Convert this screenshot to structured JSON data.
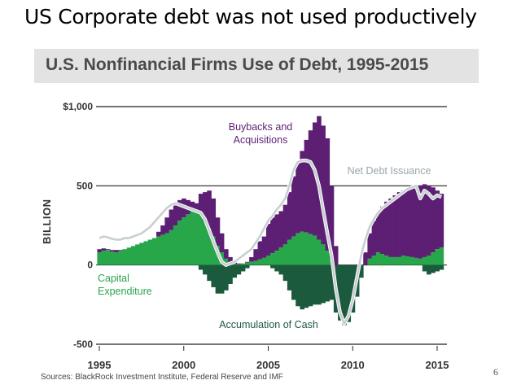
{
  "slide": {
    "title": "US Corporate debt was not used productively",
    "page_number": "6"
  },
  "chart_title": "U.S. Nonfinancial Firms Use of Debt, 1995-2015",
  "source": "Sources: BlackRock Investment Institute, Federal Reserve and IMF",
  "colors": {
    "buybacks": "#5d1f73",
    "capex": "#27a74a",
    "cash": "#1c5a3e",
    "net_debt": "#c8cfd2",
    "axis": "#222222",
    "banner": "#e3e3e3"
  },
  "chart_data": {
    "type": "area",
    "title": "U.S. Nonfinancial Firms Use of Debt, 1995-2015",
    "ylabel": "BILLION",
    "xlabel": "",
    "ylim": [
      -500,
      1000
    ],
    "xlim": [
      1995,
      2015.5
    ],
    "yticks": [
      {
        "value": 1000,
        "label": "$1,000"
      },
      {
        "value": 500,
        "label": "500"
      },
      {
        "value": 0,
        "label": "0"
      },
      {
        "value": -500,
        "label": "-500"
      }
    ],
    "xticks": [
      {
        "value": 1995,
        "label": "1995"
      },
      {
        "value": 2000,
        "label": "2000"
      },
      {
        "value": 2005,
        "label": "2005"
      },
      {
        "value": 2010,
        "label": "2010"
      },
      {
        "value": 2015,
        "label": "2015"
      }
    ],
    "x": [
      1995.0,
      1995.25,
      1995.5,
      1995.75,
      1996.0,
      1996.25,
      1996.5,
      1996.75,
      1997.0,
      1997.25,
      1997.5,
      1997.75,
      1998.0,
      1998.25,
      1998.5,
      1998.75,
      1999.0,
      1999.25,
      1999.5,
      1999.75,
      2000.0,
      2000.25,
      2000.5,
      2000.75,
      2001.0,
      2001.25,
      2001.5,
      2001.75,
      2002.0,
      2002.25,
      2002.5,
      2002.75,
      2003.0,
      2003.25,
      2003.5,
      2003.75,
      2004.0,
      2004.25,
      2004.5,
      2004.75,
      2005.0,
      2005.25,
      2005.5,
      2005.75,
      2006.0,
      2006.25,
      2006.5,
      2006.75,
      2007.0,
      2007.25,
      2007.5,
      2007.75,
      2008.0,
      2008.25,
      2008.5,
      2008.75,
      2009.0,
      2009.25,
      2009.5,
      2009.75,
      2010.0,
      2010.25,
      2010.5,
      2010.75,
      2011.0,
      2011.25,
      2011.5,
      2011.75,
      2012.0,
      2012.25,
      2012.5,
      2012.75,
      2013.0,
      2013.25,
      2013.5,
      2013.75,
      2014.0,
      2014.25,
      2014.5,
      2014.75,
      2015.0,
      2015.25
    ],
    "series": [
      {
        "name": "Capital Expenditure",
        "values": [
          80,
          90,
          95,
          85,
          80,
          90,
          100,
          110,
          120,
          130,
          140,
          150,
          160,
          170,
          180,
          190,
          200,
          220,
          250,
          280,
          300,
          320,
          340,
          350,
          330,
          280,
          230,
          180,
          120,
          80,
          40,
          15,
          5,
          5,
          10,
          15,
          20,
          25,
          35,
          45,
          60,
          75,
          90,
          110,
          130,
          160,
          180,
          200,
          210,
          205,
          195,
          185,
          160,
          130,
          90,
          40,
          0,
          0,
          0,
          0,
          0,
          0,
          0,
          0,
          40,
          60,
          80,
          70,
          60,
          50,
          50,
          50,
          60,
          55,
          50,
          45,
          40,
          50,
          60,
          80,
          100,
          110
        ]
      },
      {
        "name": "Buybacks and Acquisitions",
        "values": [
          100,
          105,
          100,
          95,
          95,
          95,
          90,
          85,
          90,
          100,
          110,
          120,
          130,
          170,
          210,
          250,
          300,
          350,
          390,
          410,
          420,
          410,
          400,
          390,
          450,
          460,
          470,
          420,
          300,
          200,
          100,
          50,
          20,
          10,
          10,
          20,
          50,
          100,
          150,
          180,
          260,
          300,
          320,
          340,
          380,
          460,
          560,
          650,
          720,
          790,
          850,
          900,
          940,
          880,
          800,
          500,
          120,
          0,
          0,
          0,
          0,
          0,
          0,
          80,
          200,
          280,
          330,
          370,
          400,
          420,
          440,
          460,
          470,
          470,
          490,
          500,
          500,
          510,
          500,
          490,
          470,
          450
        ]
      },
      {
        "name": "Accumulation of Cash",
        "values": [
          0,
          0,
          0,
          0,
          0,
          0,
          0,
          0,
          0,
          0,
          0,
          0,
          0,
          0,
          0,
          0,
          0,
          0,
          0,
          0,
          0,
          0,
          0,
          0,
          -30,
          -60,
          -100,
          -140,
          -180,
          -180,
          -160,
          -120,
          -80,
          -60,
          -40,
          -20,
          0,
          0,
          0,
          0,
          0,
          -20,
          -40,
          -60,
          -100,
          -160,
          -220,
          -260,
          -280,
          -270,
          -260,
          -250,
          -250,
          -240,
          -230,
          -220,
          -300,
          -350,
          -380,
          -360,
          -300,
          -200,
          -80,
          0,
          0,
          0,
          0,
          0,
          0,
          0,
          0,
          0,
          0,
          0,
          0,
          0,
          0,
          -40,
          -60,
          -50,
          -40,
          -30
        ]
      },
      {
        "name": "Net Debt Issuance",
        "values": [
          170,
          180,
          175,
          165,
          160,
          160,
          170,
          170,
          180,
          190,
          200,
          220,
          240,
          270,
          300,
          330,
          360,
          380,
          390,
          380,
          370,
          360,
          350,
          340,
          330,
          290,
          220,
          150,
          80,
          20,
          0,
          10,
          20,
          40,
          60,
          80,
          100,
          140,
          180,
          230,
          280,
          310,
          350,
          380,
          420,
          500,
          600,
          650,
          660,
          660,
          650,
          600,
          500,
          350,
          200,
          60,
          -150,
          -300,
          -370,
          -320,
          -220,
          -80,
          60,
          160,
          240,
          290,
          330,
          360,
          380,
          400,
          420,
          440,
          460,
          480,
          490,
          500,
          420,
          470,
          450,
          420,
          440,
          430
        ]
      }
    ],
    "annotations": [
      {
        "text": "Buybacks and Acquisitions",
        "lines": [
          "Buybacks and",
          "Acquisitions"
        ]
      },
      {
        "text": "Net Debt Issuance",
        "lines": [
          "Net Debt Issuance"
        ]
      },
      {
        "text": "Capital Expenditure",
        "lines": [
          "Capital",
          "Expenditure"
        ]
      },
      {
        "text": "Accumulation of Cash",
        "lines": [
          "Accumulation of Cash"
        ]
      }
    ],
    "grid": true,
    "legend": "none (inline annotations)"
  }
}
